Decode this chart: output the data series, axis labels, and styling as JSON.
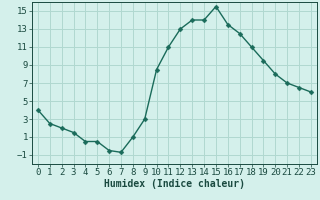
{
  "x": [
    0,
    1,
    2,
    3,
    4,
    5,
    6,
    7,
    8,
    9,
    10,
    11,
    12,
    13,
    14,
    15,
    16,
    17,
    18,
    19,
    20,
    21,
    22,
    23
  ],
  "y": [
    4,
    2.5,
    2,
    1.5,
    0.5,
    0.5,
    -0.5,
    -0.7,
    1,
    3,
    8.5,
    11,
    13,
    14,
    14,
    15.5,
    13.5,
    12.5,
    11,
    9.5,
    8,
    7,
    6.5,
    6
  ],
  "line_color": "#1a6b5a",
  "marker": "D",
  "marker_size": 2.5,
  "bg_color": "#d4f0eb",
  "grid_color": "#b0d8d0",
  "xlabel": "Humidex (Indice chaleur)",
  "ylim": [
    -2,
    16
  ],
  "xlim": [
    -0.5,
    23.5
  ],
  "yticks": [
    -1,
    1,
    3,
    5,
    7,
    9,
    11,
    13,
    15
  ],
  "xticks": [
    0,
    1,
    2,
    3,
    4,
    5,
    6,
    7,
    8,
    9,
    10,
    11,
    12,
    13,
    14,
    15,
    16,
    17,
    18,
    19,
    20,
    21,
    22,
    23
  ],
  "tick_color": "#1a4a40",
  "label_fontsize": 7,
  "tick_fontsize": 6.5,
  "line_width": 1.0
}
